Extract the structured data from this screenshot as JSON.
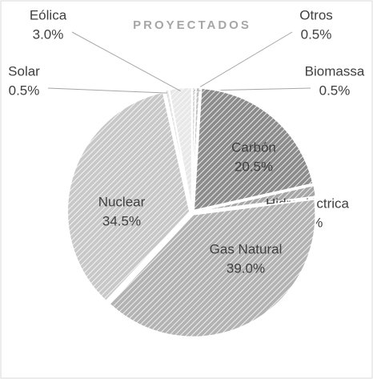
{
  "chart_data": {
    "type": "pie",
    "title": "PROYECTADOS",
    "categories": [
      "Otros",
      "Biomassa",
      "Carbón",
      "Hidroeléctrica",
      "Gas Natural",
      "Nuclear",
      "Solar",
      "Eólica"
    ],
    "values": [
      0.5,
      0.5,
      20.5,
      1.5,
      39.0,
      34.5,
      0.5,
      3.0
    ],
    "value_labels": [
      "0.5%",
      "0.5%",
      "20.5%",
      "1.5%",
      "39.0%",
      "34.5%",
      "0.5%",
      "3.0%"
    ],
    "colors": [
      "#d9d9d9",
      "#bfbfbf",
      "#8c8c8c",
      "#a6a6a6",
      "#b3b3b3",
      "#c8c8c8",
      "#e0e0e0",
      "#e8e8e8"
    ]
  }
}
